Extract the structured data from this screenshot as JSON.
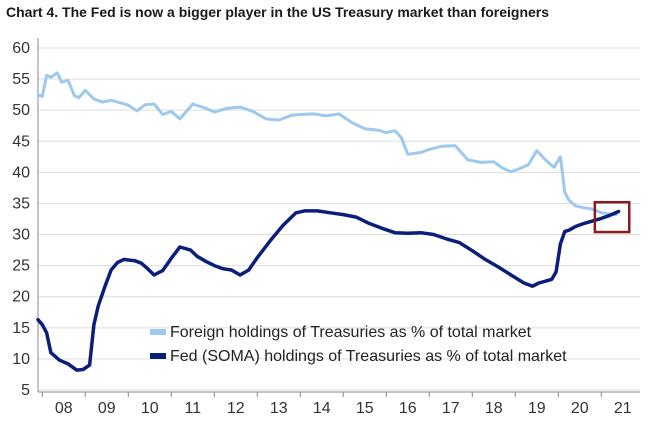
{
  "chart_data": {
    "type": "line",
    "title": "Chart 4. The Fed is now a bigger player in the US Treasury market than foreigners",
    "xlabel": "",
    "ylabel": "",
    "ylim": [
      5,
      60
    ],
    "xlim": [
      2007.9,
      2021.9
    ],
    "yticks": [
      5,
      10,
      15,
      20,
      25,
      30,
      35,
      40,
      45,
      50,
      55,
      60
    ],
    "xtick_labels": [
      "08",
      "09",
      "10",
      "11",
      "12",
      "13",
      "14",
      "15",
      "16",
      "17",
      "18",
      "19",
      "20",
      "21"
    ],
    "grid": true,
    "legend_position": "bottom-center",
    "annotation": "highlight box around latest values (2021)",
    "series": [
      {
        "name": "Foreign holdings of Treasuries as % of total market",
        "color": "#9fc8ee",
        "x": [
          2007.9,
          2008.0,
          2008.1,
          2008.2,
          2008.35,
          2008.45,
          2008.6,
          2008.75,
          2008.85,
          2009.0,
          2009.2,
          2009.4,
          2009.6,
          2009.8,
          2010.0,
          2010.2,
          2010.4,
          2010.6,
          2010.8,
          2011.0,
          2011.2,
          2011.5,
          2011.8,
          2012.0,
          2012.3,
          2012.6,
          2012.9,
          2013.2,
          2013.5,
          2013.8,
          2014.0,
          2014.3,
          2014.6,
          2014.9,
          2015.2,
          2015.5,
          2015.8,
          2016.0,
          2016.2,
          2016.35,
          2016.5,
          2016.8,
          2017.0,
          2017.3,
          2017.6,
          2017.9,
          2018.2,
          2018.5,
          2018.7,
          2018.9,
          2019.1,
          2019.3,
          2019.5,
          2019.7,
          2019.9,
          2020.05,
          2020.15,
          2020.25,
          2020.4,
          2020.6,
          2020.8,
          2021.0,
          2021.2,
          2021.35
        ],
        "values": [
          52.5,
          52.2,
          55.6,
          55.3,
          56.0,
          54.5,
          54.8,
          52.3,
          52.0,
          53.2,
          51.8,
          51.3,
          51.6,
          51.2,
          50.8,
          49.9,
          50.9,
          51.0,
          49.3,
          49.8,
          48.6,
          51.0,
          50.3,
          49.7,
          50.3,
          50.5,
          49.8,
          48.6,
          48.4,
          49.2,
          49.3,
          49.4,
          49.1,
          49.4,
          48.0,
          47.0,
          46.8,
          46.4,
          46.7,
          45.6,
          42.9,
          43.2,
          43.7,
          44.2,
          44.3,
          42.0,
          41.6,
          41.7,
          40.7,
          40.1,
          40.6,
          41.2,
          43.5,
          42.0,
          40.8,
          42.5,
          36.8,
          35.5,
          34.6,
          34.3,
          34.1,
          33.5,
          33.3,
          33.2
        ],
        "line_width": 3
      },
      {
        "name": "Fed (SOMA) holdings of Treasuries as % of total market",
        "color": "#0b1f7a",
        "x": [
          2007.9,
          2008.0,
          2008.1,
          2008.2,
          2008.4,
          2008.6,
          2008.8,
          2008.95,
          2009.1,
          2009.2,
          2009.3,
          2009.45,
          2009.6,
          2009.75,
          2009.9,
          2010.0,
          2010.15,
          2010.3,
          2010.45,
          2010.6,
          2010.8,
          2011.0,
          2011.2,
          2011.45,
          2011.6,
          2011.8,
          2012.0,
          2012.2,
          2012.4,
          2012.6,
          2012.8,
          2013.0,
          2013.3,
          2013.6,
          2013.9,
          2014.1,
          2014.4,
          2014.7,
          2015.0,
          2015.3,
          2015.6,
          2015.9,
          2016.2,
          2016.5,
          2016.8,
          2017.1,
          2017.4,
          2017.7,
          2018.0,
          2018.3,
          2018.6,
          2018.9,
          2019.2,
          2019.4,
          2019.55,
          2019.7,
          2019.85,
          2019.95,
          2020.05,
          2020.15,
          2020.25,
          2020.4,
          2020.6,
          2020.8,
          2021.0,
          2021.2,
          2021.4
        ],
        "values": [
          16.3,
          15.5,
          14.2,
          11.0,
          9.8,
          9.2,
          8.2,
          8.3,
          9.0,
          15.5,
          18.5,
          21.5,
          24.3,
          25.5,
          26.0,
          25.9,
          25.8,
          25.4,
          24.5,
          23.5,
          24.2,
          26.2,
          28.0,
          27.5,
          26.5,
          25.7,
          25.0,
          24.5,
          24.3,
          23.5,
          24.3,
          26.3,
          29.0,
          31.5,
          33.5,
          33.8,
          33.8,
          33.5,
          33.2,
          32.8,
          31.8,
          31.0,
          30.3,
          30.2,
          30.3,
          30.0,
          29.3,
          28.7,
          27.4,
          26.0,
          24.8,
          23.5,
          22.2,
          21.7,
          22.2,
          22.5,
          22.8,
          24.0,
          28.5,
          30.5,
          30.7,
          31.3,
          31.8,
          32.2,
          32.6,
          33.1,
          33.7
        ],
        "line_width": 3.5
      }
    ]
  },
  "colors": {
    "grid": "#dddddd",
    "axis": "#888888",
    "highlight_box": "#8b1a1a"
  }
}
